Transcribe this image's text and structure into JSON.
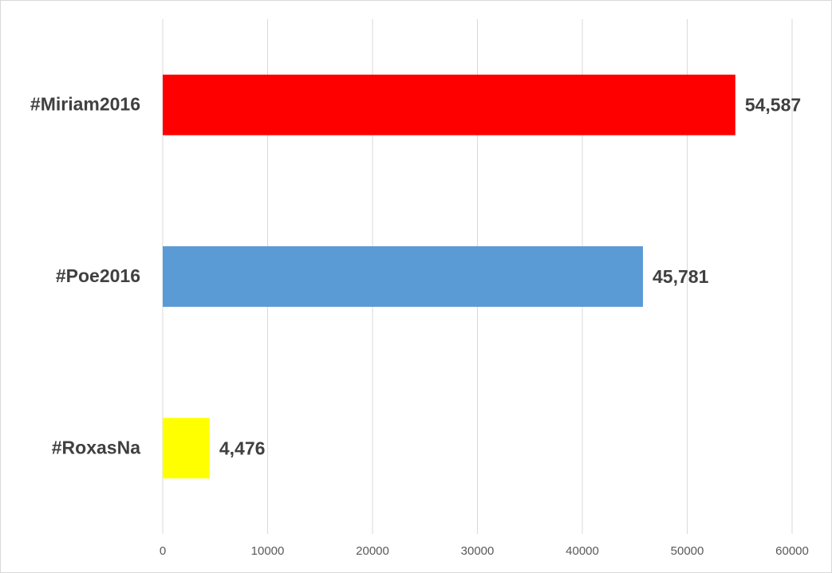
{
  "chart_data": {
    "type": "bar",
    "orientation": "horizontal",
    "categories": [
      "#Miriam2016",
      "#Poe2016",
      "#RoxasNa"
    ],
    "values": [
      54587,
      45781,
      4476
    ],
    "value_labels": [
      "54,587",
      "45,781",
      "4,476"
    ],
    "colors": [
      "#ff0000",
      "#5b9bd5",
      "#ffff00"
    ],
    "xlim": [
      0,
      60000
    ],
    "xticks": [
      0,
      10000,
      20000,
      30000,
      40000,
      50000,
      60000
    ],
    "grid": true
  }
}
